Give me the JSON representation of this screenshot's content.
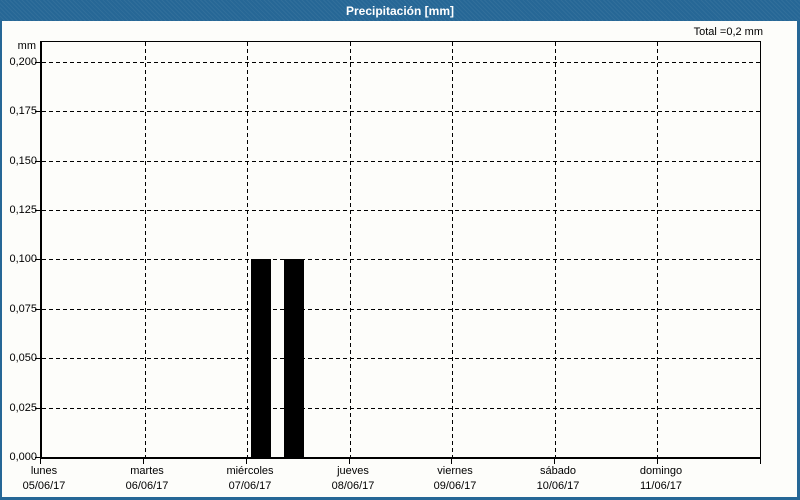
{
  "window": {
    "title": "Precipitación [mm]"
  },
  "header": {
    "total": "Total =0,2 mm"
  },
  "chart_data": {
    "type": "bar",
    "title": "Precipitación [mm]",
    "xlabel": "",
    "ylabel": "mm",
    "ylim": [
      0,
      0.21
    ],
    "grid": "dashed",
    "legend_position": "none",
    "total_mm": "0,2",
    "yticks": [
      {
        "value": 0.0,
        "label": "0,000"
      },
      {
        "value": 0.025,
        "label": "0,025"
      },
      {
        "value": 0.05,
        "label": "0,050"
      },
      {
        "value": 0.075,
        "label": "0,075"
      },
      {
        "value": 0.1,
        "label": "0,100"
      },
      {
        "value": 0.125,
        "label": "0,125"
      },
      {
        "value": 0.15,
        "label": "0,150"
      },
      {
        "value": 0.175,
        "label": "0,175"
      },
      {
        "value": 0.2,
        "label": "0,200"
      }
    ],
    "days": [
      {
        "weekday": "lunes",
        "date": "05/06/17"
      },
      {
        "weekday": "martes",
        "date": "06/06/17"
      },
      {
        "weekday": "miércoles",
        "date": "07/06/17"
      },
      {
        "weekday": "jueves",
        "date": "08/06/17"
      },
      {
        "weekday": "viernes",
        "date": "09/06/17"
      },
      {
        "weekday": "sábado",
        "date": "10/06/17"
      },
      {
        "weekday": "domingo",
        "date": "11/06/17"
      }
    ],
    "bars": [
      {
        "day": "miércoles",
        "date": "07/06/17",
        "value_mm": 0.1,
        "x0_frac": 0.2913,
        "x1_frac": 0.319
      },
      {
        "day": "miércoles",
        "date": "07/06/17",
        "value_mm": 0.1,
        "x0_frac": 0.337,
        "x1_frac": 0.3648
      }
    ],
    "bar_color": "#000000"
  },
  "colors": {
    "frame": "#266796",
    "title_text": "#FFFFFF",
    "background": "#FDFDFA",
    "grid": "#000000"
  }
}
